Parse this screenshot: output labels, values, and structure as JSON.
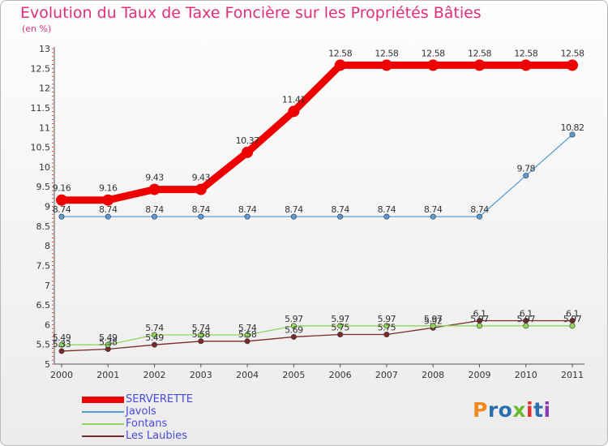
{
  "title": "Evolution du Taux de Taxe Foncière sur les Propriétés Bâties",
  "unit": "(en %)",
  "logo": {
    "letters": [
      "P",
      "r",
      "o",
      "x",
      "i",
      "t",
      "i"
    ],
    "colors": [
      "#f08a1c",
      "#2a6fb0",
      "#2a6fb0",
      "#6cb830",
      "#e03030",
      "#2a6fb0",
      "#8a3ab0"
    ]
  },
  "chart_data": {
    "type": "line",
    "title": "Evolution du Taux de Taxe Foncière sur les Propriétés Bâties",
    "ylabel": "(en %)",
    "x": [
      "2000",
      "2001",
      "2002",
      "2003",
      "2004",
      "2005",
      "2006",
      "2007",
      "2008",
      "2009",
      "2010",
      "2011"
    ],
    "yticks": [
      "5",
      "5.5",
      "6",
      "6.5",
      "7",
      "7.5",
      "8",
      "8.5",
      "9",
      "9.5",
      "10",
      "10.5",
      "11",
      "11.5",
      "12",
      "12.5",
      "13"
    ],
    "ylim": [
      5,
      13
    ],
    "series": [
      {
        "name": "SERVERETTE",
        "color": "#ee0000",
        "values": [
          9.16,
          9.16,
          9.43,
          9.43,
          10.37,
          11.41,
          12.58,
          12.58,
          12.58,
          12.58,
          12.58,
          12.58
        ],
        "labels": [
          "9.16",
          "9.16",
          "9.43",
          "9.43",
          "10.37",
          "11.41",
          "12.58",
          "12.58",
          "12.58",
          "12.58",
          "12.58",
          "12.58"
        ]
      },
      {
        "name": "Javols",
        "color": "#5a9bd5",
        "values": [
          8.74,
          8.74,
          8.74,
          8.74,
          8.74,
          8.74,
          8.74,
          8.74,
          8.74,
          8.74,
          9.78,
          10.82
        ],
        "labels": [
          "8.74",
          "8.74",
          "8.74",
          "8.74",
          "8.74",
          "8.74",
          "8.74",
          "8.74",
          "8.74",
          "8.74",
          "9.78",
          "10.82"
        ]
      },
      {
        "name": "Fontans",
        "color": "#8fd65a",
        "values": [
          5.49,
          5.49,
          5.74,
          5.74,
          5.74,
          5.97,
          5.97,
          5.97,
          5.97,
          5.97,
          5.97,
          5.97
        ],
        "labels": [
          "5.49",
          "5.49",
          "5.74",
          "5.74",
          "5.74",
          "5.97",
          "5.97",
          "5.97",
          "5.97",
          "5.97",
          "5.97",
          "5.97"
        ]
      },
      {
        "name": "Les Laubies",
        "color": "#7a2a2a",
        "values": [
          5.33,
          5.38,
          5.49,
          5.58,
          5.58,
          5.69,
          5.75,
          5.75,
          5.92,
          6.1,
          6.1,
          6.1
        ],
        "labels": [
          "5.33",
          "5.38",
          "5.49",
          "5.58",
          "5.58",
          "5.69",
          "5.75",
          "5.75",
          "5.92",
          "6.1",
          "6.1",
          "6.1"
        ]
      }
    ]
  }
}
